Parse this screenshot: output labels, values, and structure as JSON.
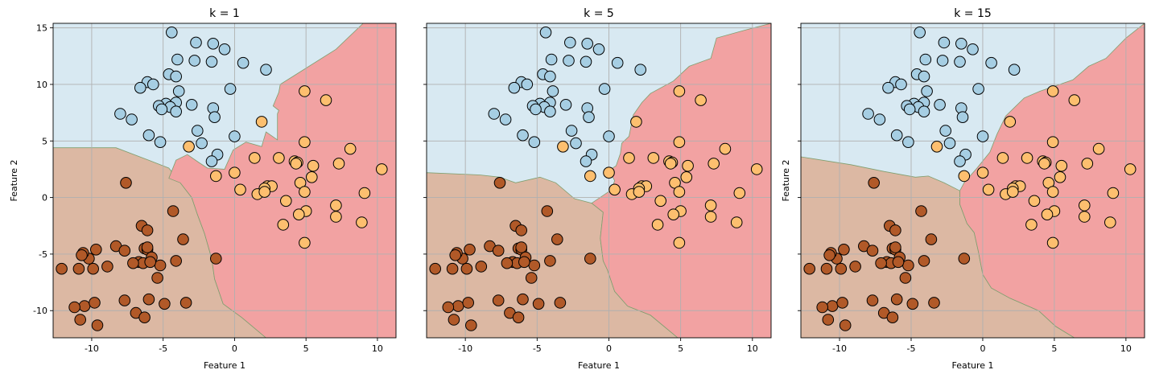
{
  "chart_data": {
    "type": "scatter",
    "colors": {
      "regions": {
        "blue": "#d8e9f2",
        "brown": "#dcb8a3",
        "red": "#f2a2a2"
      },
      "points": {
        "blue": "#a6cee3",
        "brown": "#b15928",
        "orange": "#fdbf6f"
      },
      "boundary": "#7f9f6f"
    },
    "grid": true,
    "xlim": [
      -12.7,
      11.3
    ],
    "ylim": [
      -12.4,
      15.4
    ],
    "xticks": [
      -10,
      -5,
      0,
      5,
      10
    ],
    "yticks": [
      -10,
      -5,
      0,
      5,
      10,
      15
    ],
    "points": {
      "blue": [
        [
          -4.4,
          14.6
        ],
        [
          -2.7,
          13.7
        ],
        [
          -1.5,
          13.6
        ],
        [
          -2.8,
          12.1
        ],
        [
          -1.6,
          12
        ],
        [
          -4,
          12.2
        ],
        [
          -0.7,
          13.1
        ],
        [
          0.6,
          11.9
        ],
        [
          2.2,
          11.3
        ],
        [
          -4.6,
          10.9
        ],
        [
          -4.1,
          10.7
        ],
        [
          -6.1,
          10.2
        ],
        [
          -5.7,
          10
        ],
        [
          -6.6,
          9.7
        ],
        [
          -3.9,
          9.4
        ],
        [
          -0.3,
          9.6
        ],
        [
          -4.8,
          8.3
        ],
        [
          -4.1,
          8.4
        ],
        [
          -5.3,
          8.1
        ],
        [
          -4.5,
          8
        ],
        [
          -3,
          8.2
        ],
        [
          -1.5,
          7.9
        ],
        [
          -5.1,
          7.8
        ],
        [
          -4.1,
          7.6
        ],
        [
          -8,
          7.4
        ],
        [
          -7.2,
          6.9
        ],
        [
          -1.4,
          7.1
        ],
        [
          -2.6,
          5.9
        ],
        [
          -6,
          5.5
        ],
        [
          -5.2,
          4.9
        ],
        [
          -2.3,
          4.8
        ],
        [
          0,
          5.4
        ],
        [
          -1.2,
          3.8
        ],
        [
          -1.6,
          3.2
        ]
      ],
      "orange": [
        [
          4.9,
          9.4
        ],
        [
          6.4,
          8.6
        ],
        [
          1.9,
          6.7
        ],
        [
          4.9,
          4.9
        ],
        [
          -3.2,
          4.5
        ],
        [
          8.1,
          4.3
        ],
        [
          1.4,
          3.5
        ],
        [
          3.1,
          3.5
        ],
        [
          4.2,
          3.2
        ],
        [
          4.4,
          3.1
        ],
        [
          4.3,
          3
        ],
        [
          5.5,
          2.8
        ],
        [
          7.3,
          3
        ],
        [
          10.3,
          2.5
        ],
        [
          0,
          2.2
        ],
        [
          -1.3,
          1.9
        ],
        [
          5.4,
          1.8
        ],
        [
          4.6,
          1.3
        ],
        [
          2.3,
          1
        ],
        [
          2.6,
          1
        ],
        [
          2.1,
          0.8
        ],
        [
          0.4,
          0.7
        ],
        [
          4.9,
          0.5
        ],
        [
          9.1,
          0.4
        ],
        [
          1.6,
          0.3
        ],
        [
          2.1,
          0.5
        ],
        [
          3.6,
          -0.3
        ],
        [
          7.1,
          -0.7
        ],
        [
          5,
          -1.2
        ],
        [
          4.5,
          -1.5
        ],
        [
          7.1,
          -1.7
        ],
        [
          8.9,
          -2.2
        ],
        [
          3.4,
          -2.4
        ],
        [
          4.9,
          -4
        ]
      ],
      "brown": [
        [
          -7.6,
          1.3
        ],
        [
          -4.3,
          -1.2
        ],
        [
          -6.5,
          -2.5
        ],
        [
          -6.1,
          -2.9
        ],
        [
          -3.6,
          -3.7
        ],
        [
          -6.3,
          -4.5
        ],
        [
          -8.3,
          -4.3
        ],
        [
          -7.7,
          -4.7
        ],
        [
          -9.7,
          -4.6
        ],
        [
          -10.2,
          -5.4
        ],
        [
          -10.6,
          -4.9
        ],
        [
          -6.1,
          -4.6
        ],
        [
          -6.1,
          -4.4
        ],
        [
          -5.8,
          -5.3
        ],
        [
          -5.2,
          -6
        ],
        [
          -6.7,
          -5.7
        ],
        [
          -6.4,
          -5.8
        ],
        [
          -5.9,
          -5.7
        ],
        [
          -7.1,
          -5.8
        ],
        [
          -4.1,
          -5.6
        ],
        [
          -1.3,
          -5.4
        ],
        [
          -9.9,
          -6.3
        ],
        [
          -12.1,
          -6.3
        ],
        [
          -8.9,
          -6.1
        ],
        [
          -10.7,
          -5.1
        ],
        [
          -5.4,
          -7.1
        ],
        [
          -10.9,
          -6.3
        ],
        [
          -6,
          -9
        ],
        [
          -7.7,
          -9.1
        ],
        [
          -3.4,
          -9.3
        ],
        [
          -10.5,
          -9.6
        ],
        [
          -9.8,
          -9.3
        ],
        [
          -6.9,
          -10.2
        ],
        [
          -4.9,
          -9.4
        ],
        [
          -6.3,
          -10.6
        ],
        [
          -11.2,
          -9.7
        ],
        [
          -10.8,
          -10.8
        ],
        [
          -9.6,
          -11.3
        ]
      ]
    },
    "panels": [
      {
        "title": "k = 1",
        "xlabel": "Feature 1",
        "ylabel": "Feature 2",
        "regions": {
          "brown": [
            [
              -12.7,
              4.4
            ],
            [
              -8.3,
              4.4
            ],
            [
              -6,
              3.3
            ],
            [
              -4.6,
              2.6
            ],
            [
              -3.8,
              1.3
            ],
            [
              -3,
              0
            ],
            [
              -2.6,
              -1.5
            ],
            [
              -2.1,
              -3.2
            ],
            [
              -1.6,
              -5.4
            ],
            [
              -1.4,
              -7.2
            ],
            [
              -0.8,
              -9.4
            ],
            [
              0.5,
              -10.6
            ],
            [
              2.2,
              -12.4
            ],
            [
              -12.7,
              -12.4
            ]
          ],
          "red": [
            [
              11.3,
              15.4
            ],
            [
              11.3,
              -12.4
            ],
            [
              2.2,
              -12.4
            ],
            [
              0.5,
              -10.6
            ],
            [
              -0.8,
              -9.4
            ],
            [
              -1.4,
              -7.2
            ],
            [
              -1.6,
              -5.4
            ],
            [
              -2.1,
              -3.2
            ],
            [
              -2.6,
              -1.5
            ],
            [
              -3,
              0
            ],
            [
              -3.8,
              1.3
            ],
            [
              -4.6,
              1.7
            ],
            [
              -4.1,
              3.3
            ],
            [
              -3.3,
              3.8
            ],
            [
              -2.5,
              3.1
            ],
            [
              -1.9,
              2.6
            ],
            [
              -0.7,
              2.5
            ],
            [
              -0.1,
              4.2
            ],
            [
              0.8,
              4.9
            ],
            [
              1.9,
              4.5
            ],
            [
              2.2,
              5.8
            ],
            [
              3,
              5.1
            ],
            [
              3,
              7.4
            ],
            [
              3.1,
              7.7
            ],
            [
              2.7,
              8.1
            ],
            [
              3.1,
              9.3
            ],
            [
              3.2,
              10
            ],
            [
              7.1,
              13.1
            ],
            [
              9,
              15.4
            ]
          ]
        }
      },
      {
        "title": "k = 5",
        "xlabel": "Feature 1",
        "ylabel": "",
        "regions": {
          "brown": [
            [
              -12.7,
              2.2
            ],
            [
              -9,
              2
            ],
            [
              -7.6,
              1.8
            ],
            [
              -6.5,
              1.3
            ],
            [
              -4.8,
              1.8
            ],
            [
              -3.7,
              1.3
            ],
            [
              -2.4,
              -0.1
            ],
            [
              -1.2,
              -0.5
            ],
            [
              -0.4,
              -1.3
            ],
            [
              -0.6,
              -3.6
            ],
            [
              -0.4,
              -5.6
            ],
            [
              -0.1,
              -6.4
            ],
            [
              0.4,
              -8.3
            ],
            [
              1.3,
              -9.6
            ],
            [
              2.9,
              -10.4
            ],
            [
              4.8,
              -12.4
            ],
            [
              -12.7,
              -12.4
            ]
          ],
          "red": [
            [
              11.3,
              15.4
            ],
            [
              11.3,
              -12.4
            ],
            [
              4.8,
              -12.4
            ],
            [
              2.9,
              -10.4
            ],
            [
              1.3,
              -9.6
            ],
            [
              0.4,
              -8.3
            ],
            [
              -0.1,
              -6.4
            ],
            [
              -0.4,
              -5.6
            ],
            [
              -0.6,
              -3.6
            ],
            [
              -0.4,
              -1.3
            ],
            [
              -1.2,
              -0.5
            ],
            [
              0.2,
              0.7
            ],
            [
              0.4,
              1.5
            ],
            [
              0,
              2.4
            ],
            [
              0.5,
              2.8
            ],
            [
              0.8,
              3.9
            ],
            [
              0.9,
              4.8
            ],
            [
              1.4,
              5.4
            ],
            [
              1.7,
              7.3
            ],
            [
              2.3,
              8.4
            ],
            [
              2.9,
              9.2
            ],
            [
              4.5,
              10.3
            ],
            [
              5.6,
              11.6
            ],
            [
              7.1,
              12.3
            ],
            [
              7.5,
              14.1
            ],
            [
              9.5,
              14.8
            ],
            [
              11.3,
              15.4
            ]
          ]
        }
      },
      {
        "title": "k = 15",
        "xlabel": "Feature 1",
        "ylabel": "Feature 2",
        "regions": {
          "brown": [
            [
              -12.7,
              3.6
            ],
            [
              -9.2,
              2.9
            ],
            [
              -6.9,
              2.3
            ],
            [
              -4.7,
              1.8
            ],
            [
              -3.8,
              1.9
            ],
            [
              -2.7,
              1.3
            ],
            [
              -1.6,
              0.6
            ],
            [
              -1.6,
              -0.6
            ],
            [
              -1.1,
              -2.3
            ],
            [
              -0.6,
              -3.1
            ],
            [
              -0.3,
              -4.8
            ],
            [
              0,
              -6.8
            ],
            [
              0.6,
              -8
            ],
            [
              1.9,
              -8.9
            ],
            [
              3.9,
              -10
            ],
            [
              5.1,
              -11.4
            ],
            [
              6.4,
              -12.4
            ],
            [
              -12.7,
              -12.4
            ]
          ],
          "red": [
            [
              11.3,
              15.4
            ],
            [
              11.3,
              -12.4
            ],
            [
              6.4,
              -12.4
            ],
            [
              5.1,
              -11.4
            ],
            [
              3.9,
              -10
            ],
            [
              1.9,
              -8.9
            ],
            [
              0.6,
              -8
            ],
            [
              0,
              -6.8
            ],
            [
              -0.3,
              -4.8
            ],
            [
              -0.6,
              -3.1
            ],
            [
              -1.1,
              -2.3
            ],
            [
              -1.6,
              -0.6
            ],
            [
              -1.6,
              0.6
            ],
            [
              -1.3,
              1.3
            ],
            [
              -0.4,
              2.6
            ],
            [
              0.5,
              4
            ],
            [
              1,
              5.6
            ],
            [
              1.6,
              7.2
            ],
            [
              2.9,
              8.8
            ],
            [
              4,
              9.4
            ],
            [
              6.3,
              10.4
            ],
            [
              7.4,
              11.6
            ],
            [
              8.6,
              12.3
            ],
            [
              10,
              14.1
            ],
            [
              11.3,
              15.4
            ]
          ]
        }
      }
    ]
  }
}
